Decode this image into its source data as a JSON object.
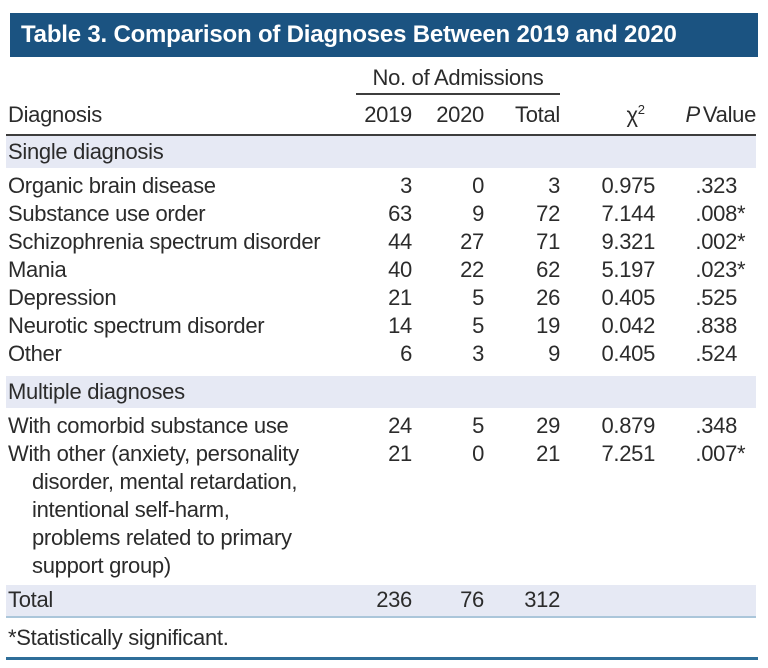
{
  "title": "Table 3. Comparison of Diagnoses Between 2019 and 2020",
  "colors": {
    "title_bar_bg": "#1b5381",
    "section_band_bg": "#e6e9f4",
    "header_rule": "#3d3d3d",
    "total_rule": "#abc6da",
    "bottom_rule": "#2e6e99",
    "text": "#2b2b2b"
  },
  "header": {
    "group_label": "No. of Admissions",
    "diagnosis": "Diagnosis",
    "col_2019": "2019",
    "col_2020": "2020",
    "col_total": "Total",
    "chi_base": "χ",
    "chi_sup": "2",
    "p_italic": "P",
    "p_rest": "Value"
  },
  "sections": [
    {
      "label": "Single diagnosis",
      "rows": [
        {
          "diagnosis": "Organic brain disease",
          "y2019": "3",
          "y2020": "0",
          "total": "3",
          "chi": "0.975",
          "p": ".323",
          "sig": false
        },
        {
          "diagnosis": "Substance use order",
          "y2019": "63",
          "y2020": "9",
          "total": "72",
          "chi": "7.144",
          "p": ".008",
          "sig": true
        },
        {
          "diagnosis": "Schizophrenia spectrum disorder",
          "y2019": "44",
          "y2020": "27",
          "total": "71",
          "chi": "9.321",
          "p": ".002",
          "sig": true
        },
        {
          "diagnosis": "Mania",
          "y2019": "40",
          "y2020": "22",
          "total": "62",
          "chi": "5.197",
          "p": ".023",
          "sig": true
        },
        {
          "diagnosis": "Depression",
          "y2019": "21",
          "y2020": "5",
          "total": "26",
          "chi": "0.405",
          "p": ".525",
          "sig": false
        },
        {
          "diagnosis": "Neurotic spectrum disorder",
          "y2019": "14",
          "y2020": "5",
          "total": "19",
          "chi": "0.042",
          "p": ".838",
          "sig": false
        },
        {
          "diagnosis": "Other",
          "y2019": "6",
          "y2020": "3",
          "total": "9",
          "chi": "0.405",
          "p": ".524",
          "sig": false
        }
      ]
    },
    {
      "label": "Multiple diagnoses",
      "rows": [
        {
          "diagnosis": "With comorbid substance use",
          "y2019": "24",
          "y2020": "5",
          "total": "29",
          "chi": "0.879",
          "p": ".348",
          "sig": false
        },
        {
          "diagnosis": [
            "With other (anxiety, personality",
            "disorder, mental retardation,",
            "intentional self-harm,",
            "problems related to primary",
            "support group)"
          ],
          "y2019": "21",
          "y2020": "0",
          "total": "21",
          "chi": "7.251",
          "p": ".007",
          "sig": true
        }
      ]
    }
  ],
  "total_row": {
    "label": "Total",
    "y2019": "236",
    "y2020": "76",
    "total": "312",
    "chi": "",
    "p": "",
    "sig": false
  },
  "footnote": "*Statistically significant."
}
